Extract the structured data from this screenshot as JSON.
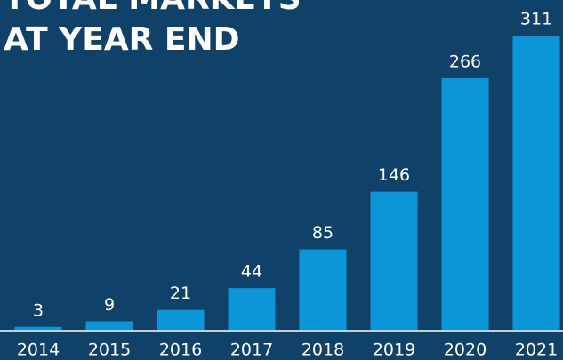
{
  "chart_data": {
    "type": "bar",
    "title": [
      "TOTAL MARKETS",
      "AT YEAR END"
    ],
    "categories": [
      "2014",
      "2015",
      "2016",
      "2017",
      "2018",
      "2019",
      "2020",
      "2021"
    ],
    "values": [
      3,
      9,
      21,
      44,
      85,
      146,
      266,
      311
    ],
    "color": "#0b96d8"
  }
}
